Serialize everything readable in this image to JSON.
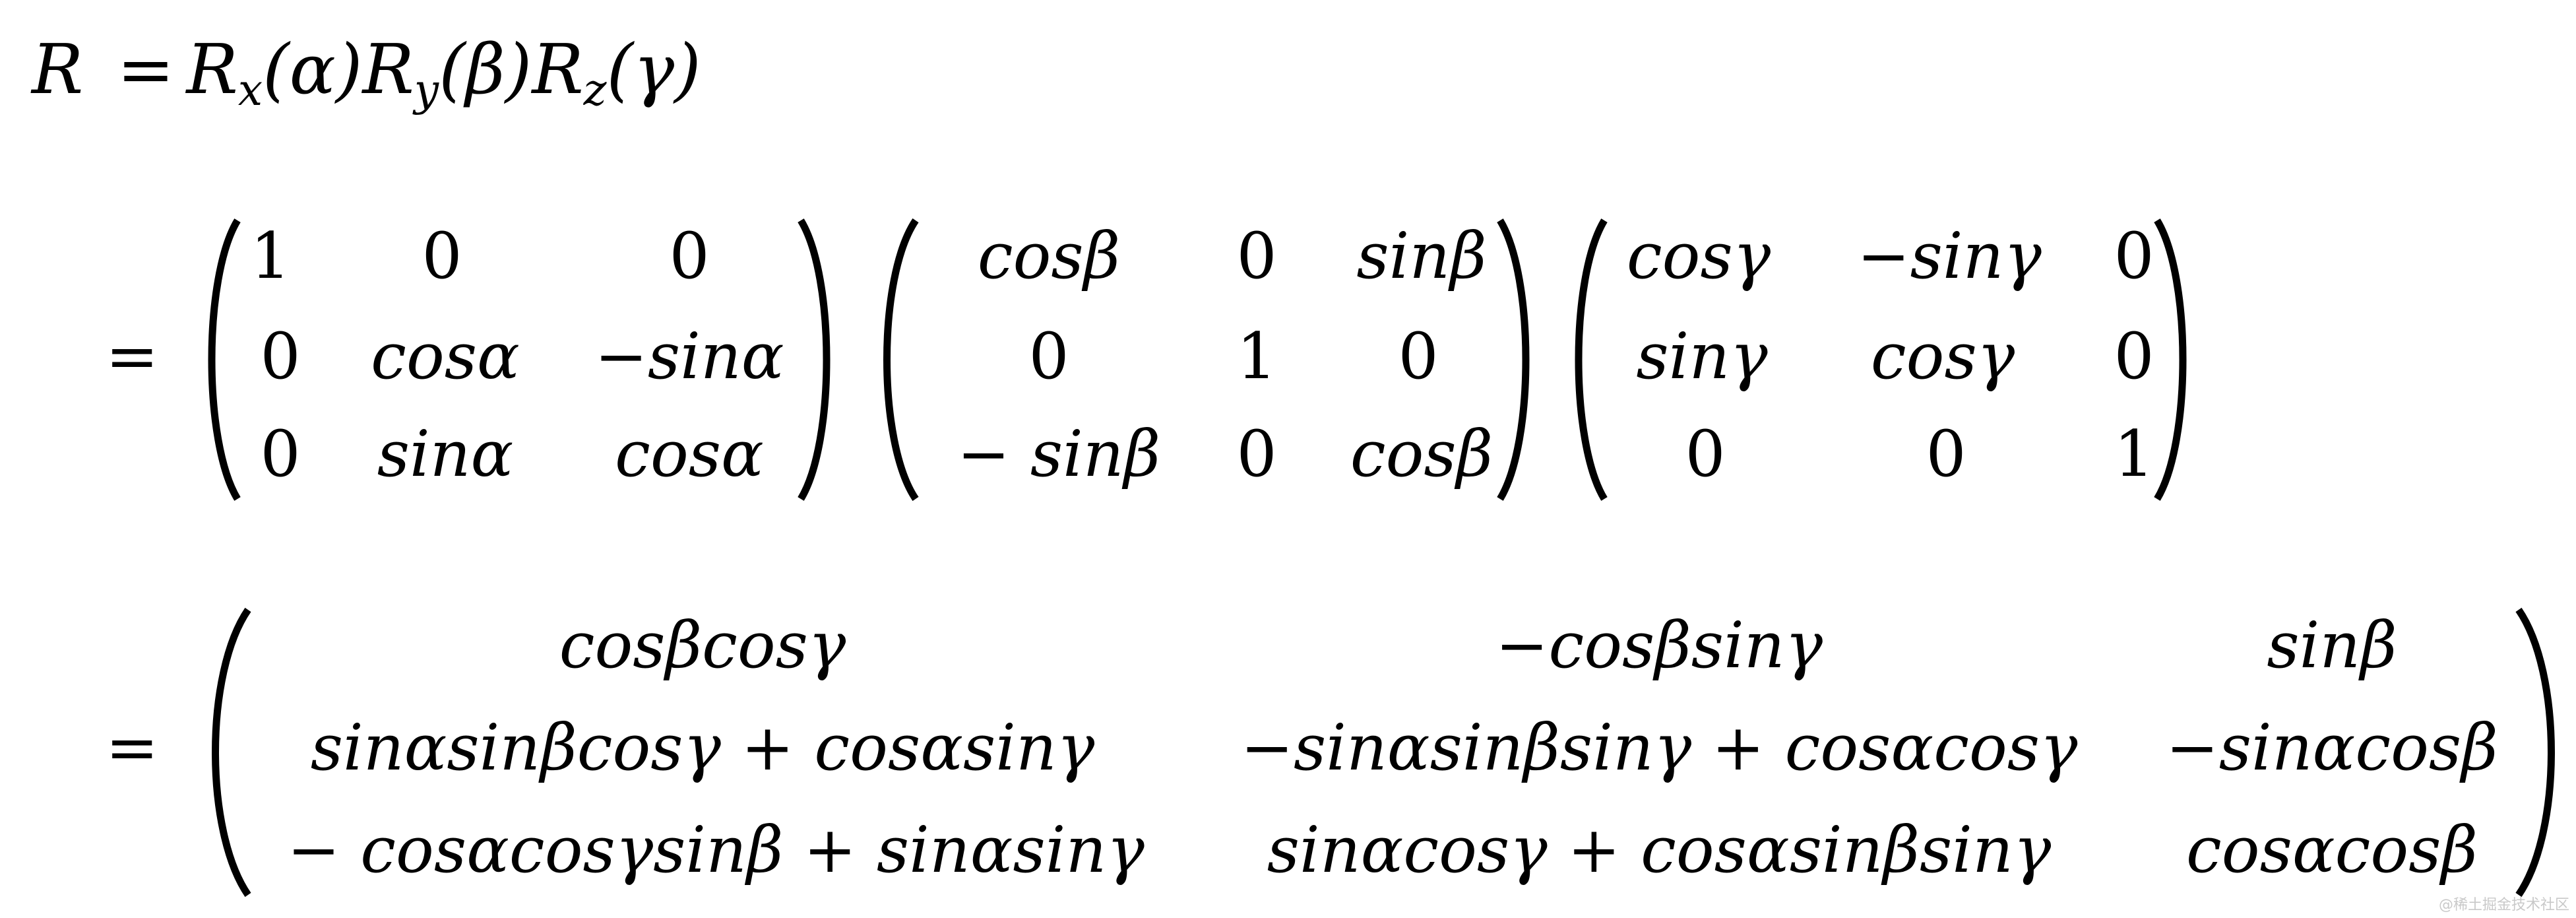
{
  "equation": {
    "lhs_R": "R",
    "eq": "=",
    "Rx": "R",
    "Rx_sub": "x",
    "Rx_arg": "(α)",
    "Ry": "R",
    "Ry_sub": "y",
    "Ry_arg": "(β)",
    "Rz": "R",
    "Rz_sub": "z",
    "Rz_arg": "(γ)"
  },
  "step2": {
    "eq": "=",
    "rx": [
      [
        "1",
        "0",
        "0"
      ],
      [
        "0",
        "cosα",
        "−sinα"
      ],
      [
        "0",
        "sinα",
        "cosα"
      ]
    ],
    "ry": [
      [
        "cosβ",
        "0",
        "sinβ"
      ],
      [
        "0",
        "1",
        "0"
      ],
      [
        "− sinβ",
        "0",
        "cosβ"
      ]
    ],
    "rz": [
      [
        "cosγ",
        "−sinγ",
        "0"
      ],
      [
        "sinγ",
        "cosγ",
        "0"
      ],
      [
        "0",
        "0",
        "1"
      ]
    ]
  },
  "step3": {
    "eq": "=",
    "result": [
      [
        "cosβcosγ",
        "−cosβsinγ",
        "sinβ"
      ],
      [
        "sinαsinβcosγ + cosαsinγ",
        "−sinαsinβsinγ + cosαcosγ",
        "−sinαcosβ"
      ],
      [
        "− cosαcosγsinβ + sinαsinγ",
        "sinαcosγ + cosαsinβsinγ",
        "cosαcosβ"
      ]
    ]
  },
  "watermark": "@稀土掘金技术社区"
}
